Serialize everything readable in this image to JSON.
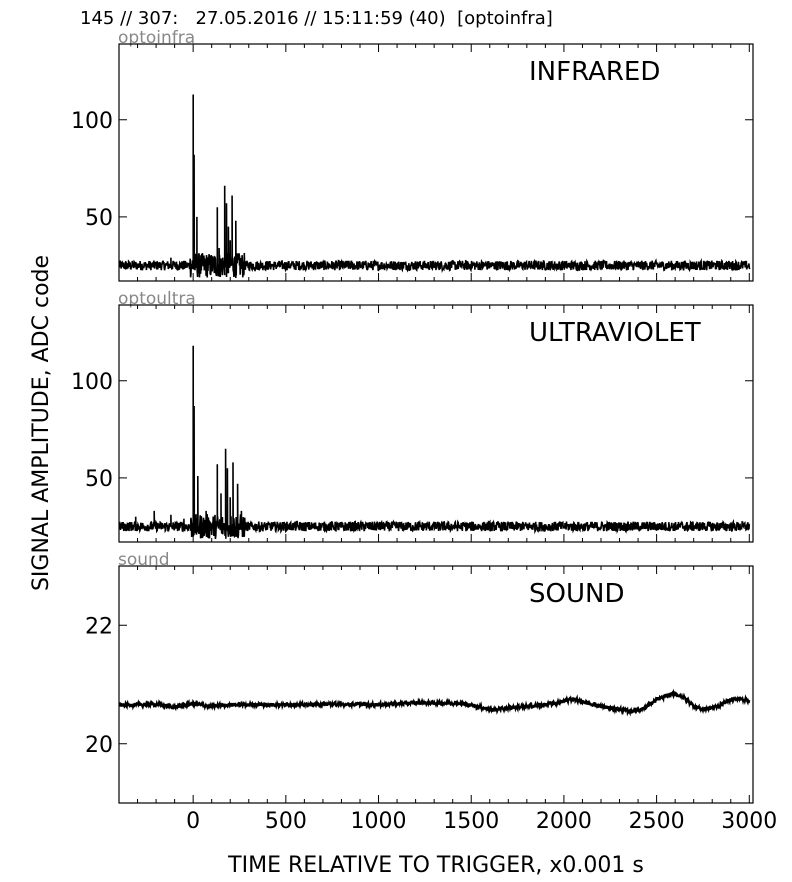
{
  "suptitle": "145 // 307:   27.05.2016 // 15:11:59 (40)  [optoinfra]",
  "ylabel": "SIGNAL AMPLITUDE,  ADC code",
  "xlabel": "TIME RELATIVE TO TRIGGER,   x0.001 s",
  "x_tick_labels": [
    "0",
    "500",
    "1000",
    "1500",
    "2000",
    "2500",
    "3000"
  ],
  "chart_data": [
    {
      "type": "line",
      "channel": "optoinfra",
      "title": "INFRARED",
      "xlim": [
        -400,
        3020
      ],
      "ylim": [
        17,
        139
      ],
      "yticks": [
        50,
        100
      ],
      "ytick_labels": [
        "50",
        "100"
      ],
      "xticks": [
        0,
        500,
        1000,
        1500,
        2000,
        2500,
        3000
      ],
      "baseline": 25,
      "noise": 2.5,
      "series": [
        {
          "points": [
            [
              -400,
              25
            ],
            [
              3000,
              25
            ]
          ],
          "spikes": [
            [
              -120,
              29
            ],
            [
              0,
              113
            ],
            [
              5,
              82
            ],
            [
              20,
              50
            ],
            [
              130,
              55
            ],
            [
              140,
              34
            ],
            [
              170,
              66
            ],
            [
              180,
              57
            ],
            [
              190,
              45
            ],
            [
              200,
              38
            ],
            [
              210,
              61
            ],
            [
              230,
              48
            ],
            [
              250,
              30
            ]
          ]
        }
      ]
    },
    {
      "type": "line",
      "channel": "optoultra",
      "title": "ULTRAVIOLET",
      "xlim": [
        -400,
        3020
      ],
      "ylim": [
        17,
        139
      ],
      "yticks": [
        50,
        100
      ],
      "ytick_labels": [
        "50",
        "100"
      ],
      "xticks": [
        0,
        500,
        1000,
        1500,
        2000,
        2500,
        3000
      ],
      "baseline": 25,
      "noise": 2.5,
      "series": [
        {
          "points": [
            [
              -400,
              25
            ],
            [
              3000,
              25
            ]
          ],
          "spikes": [
            [
              -310,
              30
            ],
            [
              -210,
              33
            ],
            [
              -120,
              31
            ],
            [
              -50,
              29
            ],
            [
              0,
              118
            ],
            [
              5,
              87
            ],
            [
              25,
              51
            ],
            [
              70,
              33
            ],
            [
              130,
              57
            ],
            [
              150,
              42
            ],
            [
              175,
              65
            ],
            [
              185,
              55
            ],
            [
              200,
              40
            ],
            [
              215,
              58
            ],
            [
              240,
              47
            ],
            [
              260,
              33
            ]
          ]
        }
      ]
    },
    {
      "type": "line",
      "channel": "sound",
      "title": "SOUND",
      "xlim": [
        -400,
        3020
      ],
      "ylim": [
        19.0,
        23.0
      ],
      "yticks": [
        20,
        22
      ],
      "ytick_labels": [
        "20",
        "22"
      ],
      "xticks": [
        0,
        500,
        1000,
        1500,
        2000,
        2500,
        3000
      ],
      "noise": 0.03,
      "series": [
        {
          "points": [
            [
              -400,
              20.65
            ],
            [
              -200,
              20.67
            ],
            [
              -100,
              20.62
            ],
            [
              0,
              20.68
            ],
            [
              100,
              20.63
            ],
            [
              200,
              20.66
            ],
            [
              400,
              20.66
            ],
            [
              600,
              20.66
            ],
            [
              800,
              20.67
            ],
            [
              1000,
              20.66
            ],
            [
              1200,
              20.69
            ],
            [
              1300,
              20.69
            ],
            [
              1450,
              20.68
            ],
            [
              1550,
              20.62
            ],
            [
              1620,
              20.57
            ],
            [
              1700,
              20.61
            ],
            [
              1800,
              20.63
            ],
            [
              1900,
              20.66
            ],
            [
              1980,
              20.7
            ],
            [
              2050,
              20.76
            ],
            [
              2100,
              20.71
            ],
            [
              2200,
              20.63
            ],
            [
              2300,
              20.58
            ],
            [
              2350,
              20.55
            ],
            [
              2420,
              20.58
            ],
            [
              2500,
              20.74
            ],
            [
              2580,
              20.84
            ],
            [
              2640,
              20.8
            ],
            [
              2700,
              20.64
            ],
            [
              2750,
              20.58
            ],
            [
              2820,
              20.62
            ],
            [
              2900,
              20.75
            ],
            [
              2960,
              20.76
            ],
            [
              3000,
              20.72
            ]
          ]
        }
      ]
    }
  ]
}
